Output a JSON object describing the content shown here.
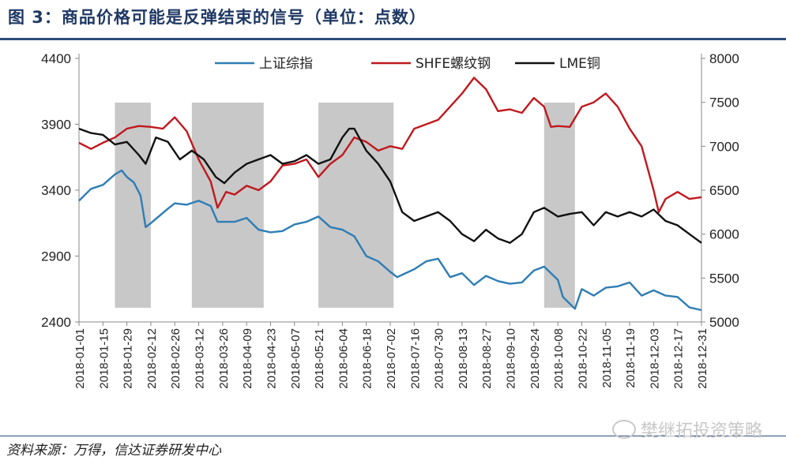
{
  "title": "图 3：商品价格可能是反弹结束的信号（单位：点数）",
  "source": "资料来源：万得，信达证券研发中心",
  "watermark": "樊继拓投资策略",
  "chart_data": {
    "type": "line",
    "colors": {
      "上证综指": "#2e7db5",
      "SHFE螺纹钢": "#c0191e",
      "LME铜": "#111111",
      "shade": "#c8c8c8"
    },
    "y_left": {
      "ylim": [
        2400,
        4400
      ],
      "ticks": [
        2400,
        2900,
        3400,
        3900,
        4400
      ]
    },
    "y_right": {
      "ylim": [
        5000,
        8000
      ],
      "ticks": [
        5000,
        5500,
        6000,
        6500,
        7000,
        7500,
        8000
      ]
    },
    "x_ticks": [
      "2018-01-01",
      "2018-01-15",
      "2018-01-29",
      "2018-02-12",
      "2018-02-26",
      "2018-03-12",
      "2018-03-26",
      "2018-04-09",
      "2018-04-23",
      "2018-05-07",
      "2018-05-21",
      "2018-06-04",
      "2018-06-18",
      "2018-07-02",
      "2018-07-16",
      "2018-07-30",
      "2018-08-13",
      "2018-08-27",
      "2018-09-10",
      "2018-09-24",
      "2018-10-08",
      "2018-10-22",
      "2018-11-05",
      "2018-11-19",
      "2018-12-03",
      "2018-12-17",
      "2018-12-31"
    ],
    "shaded_periods": [
      [
        "2018-01-22",
        "2018-02-12"
      ],
      [
        "2018-03-08",
        "2018-04-19"
      ],
      [
        "2018-05-21",
        "2018-07-04"
      ],
      [
        "2018-09-30",
        "2018-10-18"
      ]
    ],
    "series": [
      {
        "name": "上证综指",
        "axis": "left",
        "points": [
          [
            "2018-01-01",
            3320
          ],
          [
            "2018-01-08",
            3410
          ],
          [
            "2018-01-15",
            3440
          ],
          [
            "2018-01-22",
            3520
          ],
          [
            "2018-01-26",
            3550
          ],
          [
            "2018-01-29",
            3500
          ],
          [
            "2018-02-02",
            3460
          ],
          [
            "2018-02-06",
            3360
          ],
          [
            "2018-02-09",
            3120
          ],
          [
            "2018-02-12",
            3150
          ],
          [
            "2018-02-22",
            3260
          ],
          [
            "2018-02-26",
            3300
          ],
          [
            "2018-03-05",
            3290
          ],
          [
            "2018-03-12",
            3320
          ],
          [
            "2018-03-19",
            3280
          ],
          [
            "2018-03-23",
            3160
          ],
          [
            "2018-04-02",
            3160
          ],
          [
            "2018-04-09",
            3190
          ],
          [
            "2018-04-16",
            3100
          ],
          [
            "2018-04-23",
            3080
          ],
          [
            "2018-04-30",
            3090
          ],
          [
            "2018-05-07",
            3140
          ],
          [
            "2018-05-14",
            3160
          ],
          [
            "2018-05-21",
            3200
          ],
          [
            "2018-05-28",
            3120
          ],
          [
            "2018-06-04",
            3100
          ],
          [
            "2018-06-11",
            3050
          ],
          [
            "2018-06-18",
            2900
          ],
          [
            "2018-06-25",
            2860
          ],
          [
            "2018-07-02",
            2780
          ],
          [
            "2018-07-06",
            2740
          ],
          [
            "2018-07-16",
            2800
          ],
          [
            "2018-07-23",
            2860
          ],
          [
            "2018-07-30",
            2880
          ],
          [
            "2018-08-06",
            2740
          ],
          [
            "2018-08-13",
            2770
          ],
          [
            "2018-08-20",
            2680
          ],
          [
            "2018-08-27",
            2750
          ],
          [
            "2018-09-03",
            2710
          ],
          [
            "2018-09-10",
            2690
          ],
          [
            "2018-09-17",
            2700
          ],
          [
            "2018-09-24",
            2790
          ],
          [
            "2018-09-30",
            2820
          ],
          [
            "2018-10-08",
            2720
          ],
          [
            "2018-10-11",
            2590
          ],
          [
            "2018-10-18",
            2500
          ],
          [
            "2018-10-22",
            2650
          ],
          [
            "2018-10-29",
            2600
          ],
          [
            "2018-11-05",
            2660
          ],
          [
            "2018-11-12",
            2670
          ],
          [
            "2018-11-19",
            2700
          ],
          [
            "2018-11-26",
            2600
          ],
          [
            "2018-12-03",
            2640
          ],
          [
            "2018-12-10",
            2600
          ],
          [
            "2018-12-17",
            2590
          ],
          [
            "2018-12-24",
            2510
          ],
          [
            "2018-12-31",
            2490
          ]
        ]
      },
      {
        "name": "SHFE螺纹钢",
        "axis": "right",
        "points": [
          [
            "2018-01-01",
            7040
          ],
          [
            "2018-01-08",
            6970
          ],
          [
            "2018-01-15",
            7040
          ],
          [
            "2018-01-22",
            7100
          ],
          [
            "2018-01-29",
            7200
          ],
          [
            "2018-02-05",
            7230
          ],
          [
            "2018-02-12",
            7220
          ],
          [
            "2018-02-19",
            7200
          ],
          [
            "2018-02-26",
            7330
          ],
          [
            "2018-03-05",
            7170
          ],
          [
            "2018-03-12",
            6850
          ],
          [
            "2018-03-19",
            6600
          ],
          [
            "2018-03-23",
            6300
          ],
          [
            "2018-03-28",
            6480
          ],
          [
            "2018-04-02",
            6450
          ],
          [
            "2018-04-09",
            6550
          ],
          [
            "2018-04-16",
            6500
          ],
          [
            "2018-04-23",
            6600
          ],
          [
            "2018-04-30",
            6780
          ],
          [
            "2018-05-07",
            6800
          ],
          [
            "2018-05-14",
            6850
          ],
          [
            "2018-05-21",
            6650
          ],
          [
            "2018-05-28",
            6800
          ],
          [
            "2018-06-04",
            6900
          ],
          [
            "2018-06-11",
            7100
          ],
          [
            "2018-06-18",
            7050
          ],
          [
            "2018-06-25",
            6950
          ],
          [
            "2018-07-02",
            7000
          ],
          [
            "2018-07-09",
            6970
          ],
          [
            "2018-07-16",
            7200
          ],
          [
            "2018-07-23",
            7250
          ],
          [
            "2018-07-30",
            7300
          ],
          [
            "2018-08-06",
            7450
          ],
          [
            "2018-08-13",
            7600
          ],
          [
            "2018-08-20",
            7780
          ],
          [
            "2018-08-27",
            7650
          ],
          [
            "2018-09-03",
            7400
          ],
          [
            "2018-09-10",
            7420
          ],
          [
            "2018-09-17",
            7380
          ],
          [
            "2018-09-24",
            7550
          ],
          [
            "2018-09-30",
            7450
          ],
          [
            "2018-10-04",
            7220
          ],
          [
            "2018-10-08",
            7230
          ],
          [
            "2018-10-15",
            7220
          ],
          [
            "2018-10-22",
            7450
          ],
          [
            "2018-10-29",
            7500
          ],
          [
            "2018-11-05",
            7600
          ],
          [
            "2018-11-12",
            7450
          ],
          [
            "2018-11-19",
            7200
          ],
          [
            "2018-11-26",
            7000
          ],
          [
            "2018-12-03",
            6500
          ],
          [
            "2018-12-06",
            6250
          ],
          [
            "2018-12-10",
            6400
          ],
          [
            "2018-12-17",
            6480
          ],
          [
            "2018-12-24",
            6400
          ],
          [
            "2018-12-31",
            6420
          ]
        ]
      },
      {
        "name": "LME铜",
        "axis": "right",
        "points": [
          [
            "2018-01-01",
            7200
          ],
          [
            "2018-01-08",
            7150
          ],
          [
            "2018-01-15",
            7130
          ],
          [
            "2018-01-22",
            7020
          ],
          [
            "2018-01-29",
            7050
          ],
          [
            "2018-02-05",
            6900
          ],
          [
            "2018-02-09",
            6800
          ],
          [
            "2018-02-15",
            7100
          ],
          [
            "2018-02-22",
            7050
          ],
          [
            "2018-03-01",
            6850
          ],
          [
            "2018-03-08",
            6950
          ],
          [
            "2018-03-15",
            6850
          ],
          [
            "2018-03-22",
            6650
          ],
          [
            "2018-03-27",
            6580
          ],
          [
            "2018-04-02",
            6700
          ],
          [
            "2018-04-09",
            6800
          ],
          [
            "2018-04-16",
            6850
          ],
          [
            "2018-04-23",
            6900
          ],
          [
            "2018-04-30",
            6800
          ],
          [
            "2018-05-07",
            6830
          ],
          [
            "2018-05-14",
            6900
          ],
          [
            "2018-05-21",
            6800
          ],
          [
            "2018-05-28",
            6850
          ],
          [
            "2018-06-04",
            7100
          ],
          [
            "2018-06-08",
            7200
          ],
          [
            "2018-06-11",
            7200
          ],
          [
            "2018-06-18",
            6950
          ],
          [
            "2018-06-25",
            6800
          ],
          [
            "2018-07-02",
            6600
          ],
          [
            "2018-07-09",
            6250
          ],
          [
            "2018-07-16",
            6150
          ],
          [
            "2018-07-23",
            6200
          ],
          [
            "2018-07-30",
            6250
          ],
          [
            "2018-08-06",
            6150
          ],
          [
            "2018-08-13",
            6000
          ],
          [
            "2018-08-20",
            5920
          ],
          [
            "2018-08-27",
            6050
          ],
          [
            "2018-09-03",
            5950
          ],
          [
            "2018-09-10",
            5900
          ],
          [
            "2018-09-17",
            6000
          ],
          [
            "2018-09-24",
            6250
          ],
          [
            "2018-09-30",
            6300
          ],
          [
            "2018-10-08",
            6200
          ],
          [
            "2018-10-15",
            6230
          ],
          [
            "2018-10-22",
            6250
          ],
          [
            "2018-10-29",
            6100
          ],
          [
            "2018-11-05",
            6250
          ],
          [
            "2018-11-12",
            6200
          ],
          [
            "2018-11-19",
            6250
          ],
          [
            "2018-11-26",
            6200
          ],
          [
            "2018-12-03",
            6280
          ],
          [
            "2018-12-10",
            6150
          ],
          [
            "2018-12-17",
            6100
          ],
          [
            "2018-12-24",
            6000
          ],
          [
            "2018-12-31",
            5900
          ]
        ]
      }
    ]
  }
}
